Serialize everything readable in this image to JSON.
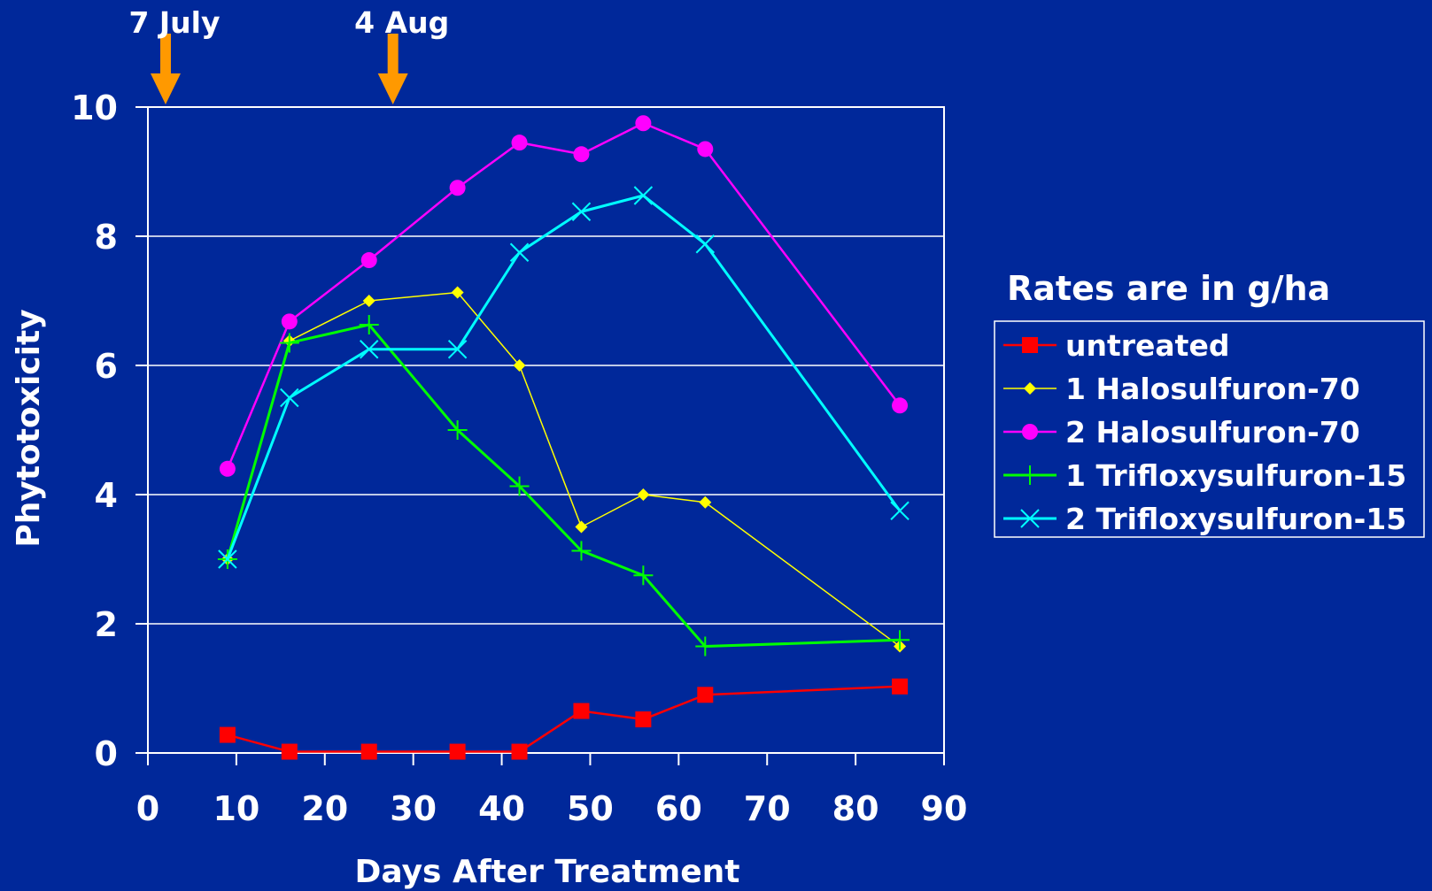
{
  "chart_data": {
    "type": "line",
    "title": "",
    "xlabel": "Days After Treatment",
    "ylabel": "Phytotoxicity",
    "xlim": [
      0,
      90
    ],
    "ylim": [
      0,
      10
    ],
    "xticks": [
      0,
      10,
      20,
      30,
      40,
      50,
      60,
      70,
      80,
      90
    ],
    "yticks": [
      0,
      2,
      4,
      6,
      8,
      10
    ],
    "grid": "horizontal",
    "legend": {
      "title": "Rates are in g/ha",
      "placement": "right"
    },
    "annotations": [
      {
        "label": "7 July",
        "x": 2,
        "marker": "orange-down-arrow"
      },
      {
        "label": "4 Aug",
        "x": 27.7,
        "marker": "orange-down-arrow"
      }
    ],
    "series": [
      {
        "name": "untreated",
        "color": "#ff0000",
        "marker": "square",
        "x": [
          9,
          16,
          25,
          35,
          42,
          49,
          56,
          63,
          85
        ],
        "y": [
          0.28,
          0.02,
          0.02,
          0.02,
          0.02,
          0.65,
          0.52,
          0.9,
          1.03
        ]
      },
      {
        "name": "1 Halosulfuron-70",
        "color": "#ffff00",
        "marker": "diamond",
        "x": [
          9,
          16,
          25,
          35,
          42,
          49,
          56,
          63,
          85
        ],
        "y": [
          3.0,
          6.38,
          7.0,
          7.13,
          6.0,
          3.5,
          4.0,
          3.88,
          1.65
        ]
      },
      {
        "name": "2 Halosulfuron-70",
        "color": "#ff00ff",
        "marker": "circle",
        "x": [
          9,
          16,
          25,
          35,
          42,
          49,
          56,
          63,
          85
        ],
        "y": [
          4.4,
          6.68,
          7.63,
          8.75,
          9.45,
          9.27,
          9.75,
          9.35,
          5.38
        ]
      },
      {
        "name": "1 Trifloxysulfuron-15",
        "color": "#00ff00",
        "marker": "plus",
        "x": [
          9,
          16,
          25,
          35,
          42,
          49,
          56,
          63,
          85
        ],
        "y": [
          3.0,
          6.35,
          6.63,
          5.0,
          4.13,
          3.13,
          2.75,
          1.65,
          1.75
        ]
      },
      {
        "name": "2 Trifloxysulfuron-15",
        "color": "#00ffff",
        "marker": "x",
        "x": [
          9,
          16,
          25,
          35,
          42,
          49,
          56,
          63,
          85
        ],
        "y": [
          3.0,
          5.5,
          6.25,
          6.25,
          7.75,
          8.38,
          8.63,
          7.88,
          3.75
        ]
      }
    ]
  }
}
